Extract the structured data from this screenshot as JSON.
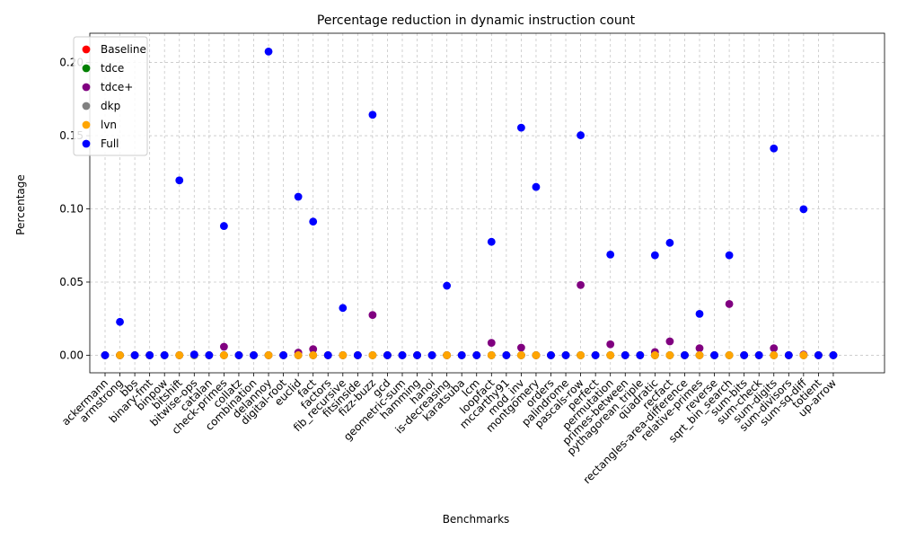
{
  "chart_data": {
    "type": "scatter",
    "title": "Percentage reduction in dynamic instruction count",
    "xlabel": "Benchmarks",
    "ylabel": "Percentage",
    "ylim": [
      -0.012,
      0.22
    ],
    "yticks": [
      0.0,
      0.05,
      0.1,
      0.15,
      0.2
    ],
    "ytick_labels": [
      "0.00",
      "0.05",
      "0.10",
      "0.15",
      "0.20"
    ],
    "grid": true,
    "legend_position": "top-left",
    "categories": [
      "ackermann",
      "armstrong",
      "bbs",
      "binary-fmt",
      "binpow",
      "bitshift",
      "bitwise-ops",
      "catalan",
      "check-primes",
      "collatz",
      "combination",
      "delannoy",
      "digital-root",
      "euclid",
      "fact",
      "factors",
      "fib_recursive",
      "fitsinside",
      "fizz-buzz",
      "gcd",
      "geometric-sum",
      "hamming",
      "hanoi",
      "is-decreasing",
      "karatsuba",
      "lcm",
      "loopfact",
      "mccarthy91",
      "mod_inv",
      "montgomery",
      "orders",
      "palindrome",
      "pascals-row",
      "perfect",
      "permutation",
      "primes-between",
      "pythagorean_triple",
      "quadratic",
      "recfact",
      "rectangles-area-difference",
      "relative-primes",
      "reverse",
      "sqrt_bin_search",
      "sum-bits",
      "sum-check",
      "sum-digits",
      "sum-divisors",
      "sum-sq-diff",
      "totient",
      "up-arrow"
    ],
    "series": [
      {
        "name": "Baseline",
        "color": "#ff0000",
        "values": [
          0,
          0,
          0,
          0,
          0,
          0,
          0,
          0,
          0,
          0,
          0,
          0,
          0,
          0,
          0,
          0,
          0,
          0,
          0,
          0,
          0,
          0,
          0,
          0,
          0,
          0,
          0,
          0,
          0,
          0,
          0,
          0,
          0,
          0,
          0,
          0,
          0,
          0,
          0,
          0,
          0,
          0,
          0,
          0,
          0,
          0,
          0,
          0,
          0,
          0
        ]
      },
      {
        "name": "tdce",
        "color": "#008000",
        "values": [
          0,
          0,
          0,
          0,
          0,
          0,
          0,
          0,
          0,
          0,
          0,
          0,
          0,
          0,
          0,
          0,
          0,
          0,
          0,
          0,
          0,
          0,
          0,
          0,
          0,
          0,
          0,
          0,
          0,
          0,
          0,
          0,
          0,
          0,
          0,
          0,
          0,
          0,
          0,
          0,
          0,
          0,
          0,
          0,
          0,
          0,
          0,
          0,
          0,
          0
        ]
      },
      {
        "name": "tdce+",
        "color": "#800080",
        "values": [
          0,
          0,
          0,
          0,
          0,
          0,
          0.0005,
          0,
          0.0058,
          0,
          0,
          0,
          0,
          0.0018,
          0.0042,
          0,
          0,
          0,
          0.0275,
          0,
          0,
          0,
          0,
          0,
          0,
          0,
          0.0085,
          0,
          0.0052,
          0,
          0,
          0,
          0.048,
          0,
          0.0075,
          0,
          0,
          0.0022,
          0.0095,
          0,
          0.0048,
          0,
          0.035,
          0,
          0,
          0.0048,
          0,
          0.0005,
          0,
          0
        ]
      },
      {
        "name": "dkp",
        "color": "#808080",
        "values": [
          0,
          0,
          0,
          0,
          0,
          0,
          0,
          0,
          0,
          0,
          0,
          0,
          0,
          0,
          0,
          0,
          0,
          0,
          0,
          0,
          0,
          0,
          0,
          0,
          0,
          0,
          0,
          0,
          0,
          0,
          0,
          0,
          0,
          0,
          0,
          0,
          0,
          0,
          0,
          0,
          0,
          0,
          0,
          0,
          0,
          0,
          0,
          0,
          0,
          0
        ]
      },
      {
        "name": "lvn",
        "color": "#ffa500",
        "values": [
          0,
          0,
          0,
          0,
          0,
          0,
          0,
          0,
          0,
          0,
          0,
          0,
          0,
          0,
          0,
          0,
          0,
          0,
          0,
          0,
          0,
          0,
          0,
          0,
          0,
          0,
          0,
          0,
          0,
          0,
          0,
          0,
          0,
          0,
          0,
          0,
          0,
          0,
          0,
          0,
          0,
          0,
          0,
          0,
          0,
          0,
          0,
          0,
          0,
          0
        ],
        "shown": [
          false,
          true,
          false,
          false,
          false,
          true,
          false,
          false,
          true,
          false,
          false,
          true,
          false,
          true,
          true,
          false,
          true,
          false,
          true,
          false,
          false,
          false,
          false,
          true,
          false,
          false,
          true,
          false,
          true,
          true,
          false,
          false,
          true,
          false,
          true,
          false,
          false,
          true,
          true,
          false,
          true,
          false,
          true,
          false,
          false,
          true,
          false,
          true,
          false,
          false
        ]
      },
      {
        "name": "Full",
        "color": "#0000ff",
        "values": [
          0,
          0.0228,
          0,
          0,
          0,
          0.1195,
          0.0005,
          0,
          0.0883,
          0,
          0,
          0.2075,
          0,
          0.1083,
          0.0913,
          0,
          0.0323,
          0,
          0.1643,
          0,
          0,
          0,
          0,
          0.0475,
          0,
          0,
          0.0775,
          0,
          0.1555,
          0.115,
          0,
          0,
          0.1503,
          0,
          0.0688,
          0,
          0,
          0.0683,
          0.0768,
          0,
          0.0283,
          0,
          0.0683,
          0,
          0,
          0.1413,
          0,
          0.0998,
          0,
          0
        ]
      }
    ]
  }
}
